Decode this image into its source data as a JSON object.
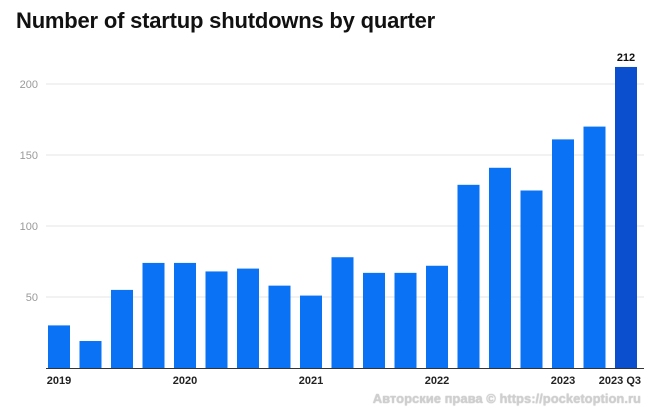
{
  "chart_data": {
    "type": "bar",
    "title": "Number of startup shutdowns by quarter",
    "xlabel": "",
    "ylabel": "",
    "ylim": [
      0,
      225
    ],
    "yticks": [
      50,
      100,
      150,
      200
    ],
    "grid": true,
    "values": [
      30,
      19,
      55,
      74,
      74,
      68,
      70,
      58,
      51,
      78,
      67,
      67,
      72,
      129,
      141,
      125,
      161,
      170,
      212
    ],
    "x_labels": [
      {
        "index": 0,
        "text": "2019"
      },
      {
        "index": 4,
        "text": "2020"
      },
      {
        "index": 8,
        "text": "2021"
      },
      {
        "index": 12,
        "text": "2022"
      },
      {
        "index": 16,
        "text": "2023"
      },
      {
        "index": 18,
        "text": "2023 Q3"
      }
    ],
    "data_labels": [
      {
        "index": 18,
        "text": "212"
      }
    ],
    "highlight_index": 18,
    "bar_color": "#0a72f5",
    "highlight_color": "#0b4fce",
    "grid_color": "#e4e4e4",
    "axis_color": "#333333"
  },
  "watermark": "Авторские права © https://pocketoption.ru"
}
